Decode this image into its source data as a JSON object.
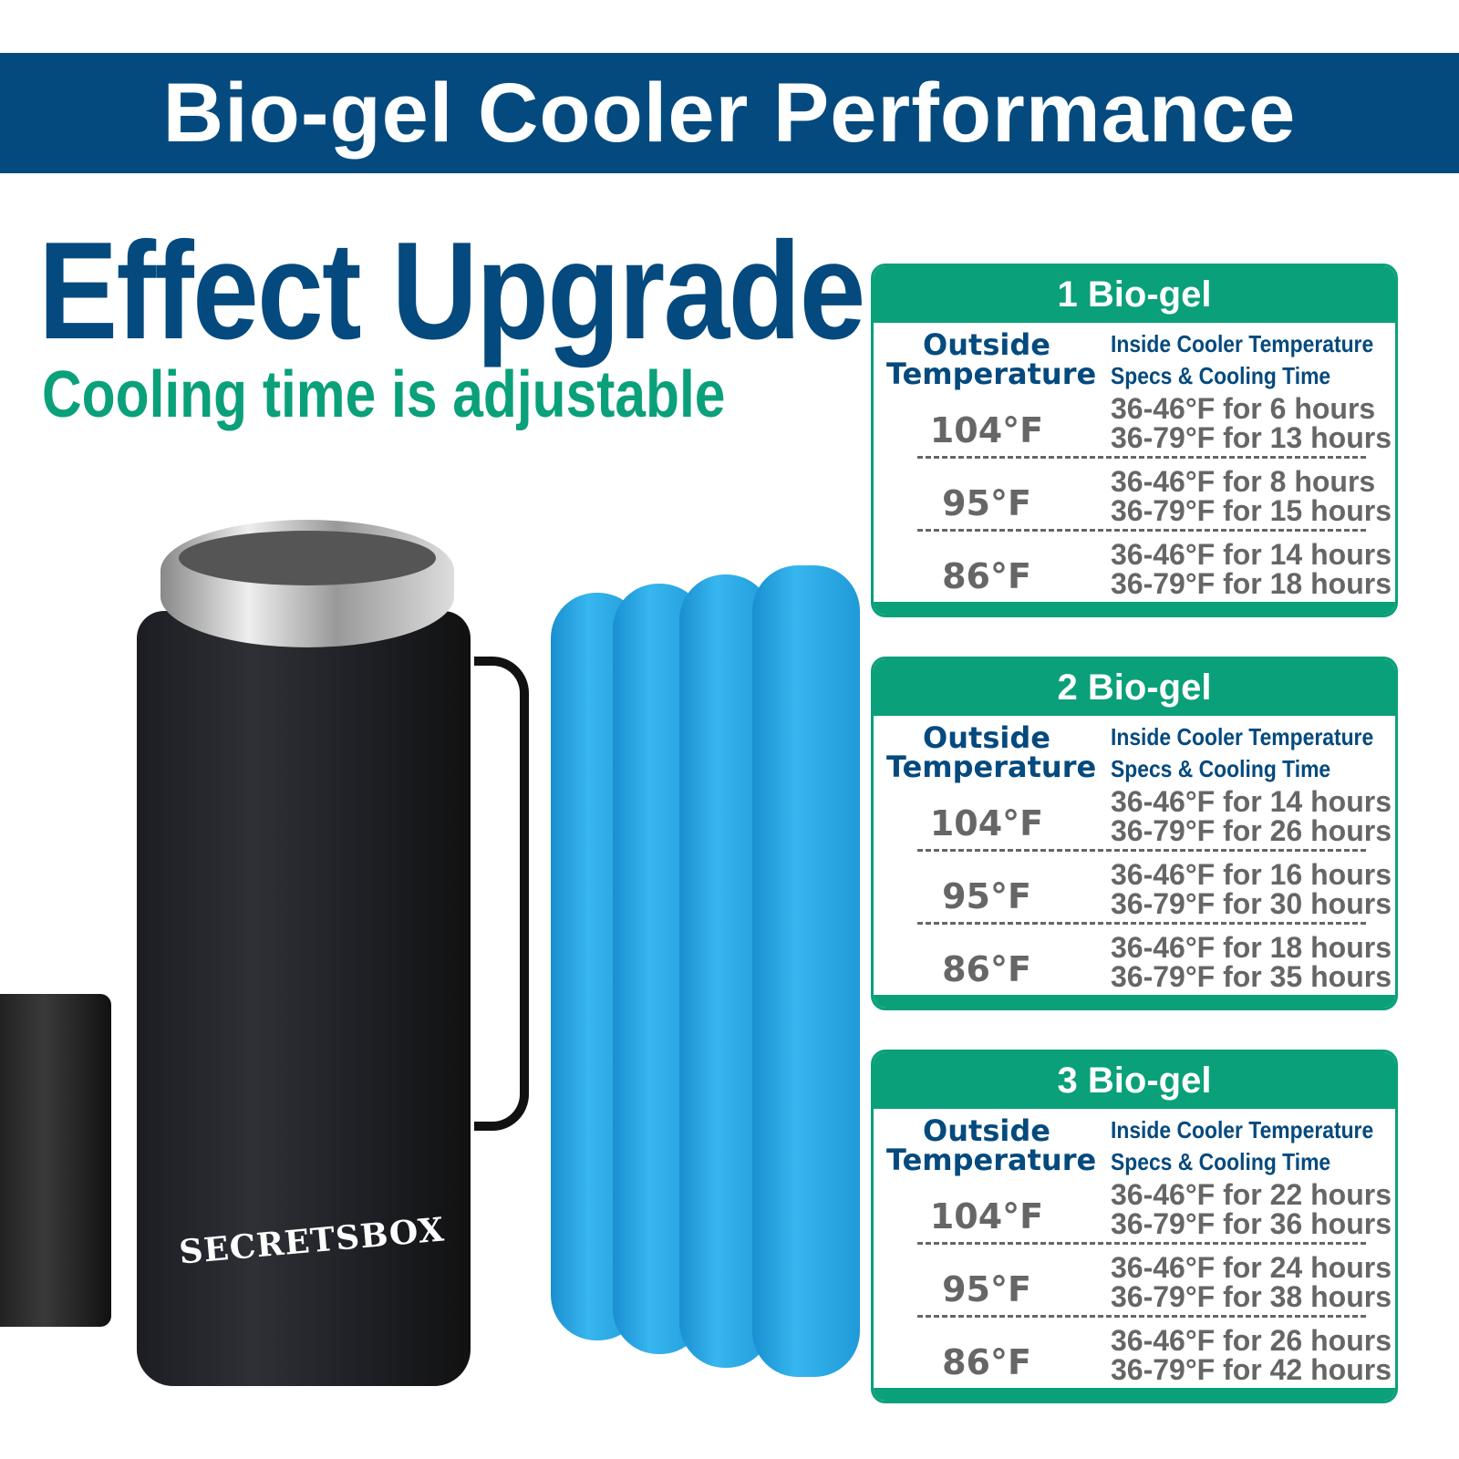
{
  "banner_title": "Bio-gel Cooler Performance",
  "headline": "Effect Upgrade",
  "subheadline": "Cooling time is adjustable",
  "product": {
    "brand_logo": "SECRETSBOX"
  },
  "colors": {
    "navy": "#054a7e",
    "green": "#0aa07a",
    "gray": "#666666",
    "gel_blue": "#37b6ef"
  },
  "cards": [
    {
      "title": "1 Bio-gel",
      "col1": "Outside Temperature",
      "col2_line1": "Inside Cooler Temperature",
      "col2_line2": "Specs & Cooling Time",
      "rows": [
        {
          "outside": "104°F",
          "a": "36-46°F for 6 hours",
          "b": "36-79°F for 13 hours"
        },
        {
          "outside": "95°F",
          "a": "36-46°F for 8 hours",
          "b": "36-79°F for 15 hours"
        },
        {
          "outside": "86°F",
          "a": "36-46°F for 14 hours",
          "b": "36-79°F for 18 hours"
        }
      ]
    },
    {
      "title": "2 Bio-gel",
      "col1": "Outside Temperature",
      "col2_line1": "Inside Cooler Temperature",
      "col2_line2": "Specs & Cooling Time",
      "rows": [
        {
          "outside": "104°F",
          "a": "36-46°F for 14 hours",
          "b": "36-79°F for 26 hours"
        },
        {
          "outside": "95°F",
          "a": "36-46°F for 16 hours",
          "b": "36-79°F for 30 hours"
        },
        {
          "outside": "86°F",
          "a": "36-46°F for 18 hours",
          "b": "36-79°F for 35 hours"
        }
      ]
    },
    {
      "title": "3 Bio-gel",
      "col1": "Outside Temperature",
      "col2_line1": "Inside Cooler Temperature",
      "col2_line2": "Specs & Cooling Time",
      "rows": [
        {
          "outside": "104°F",
          "a": "36-46°F for 22 hours",
          "b": "36-79°F for 36 hours"
        },
        {
          "outside": "95°F",
          "a": "36-46°F for 24 hours",
          "b": "36-79°F for 38 hours"
        },
        {
          "outside": "86°F",
          "a": "36-46°F for 26 hours",
          "b": "36-79°F for 42 hours"
        }
      ]
    }
  ]
}
